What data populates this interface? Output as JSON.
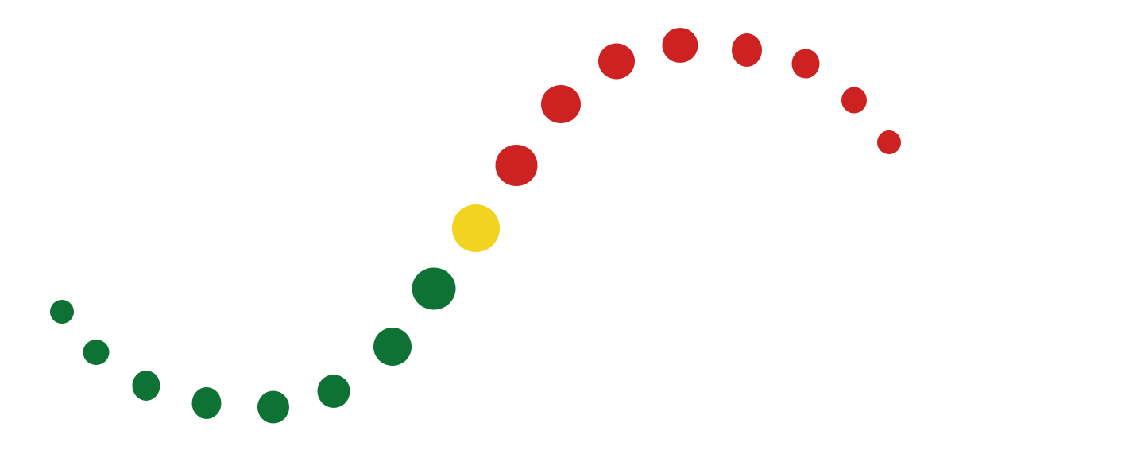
{
  "colors": {
    "background": "#ffffff",
    "green": "#0e7234",
    "yellow": "#f2d320",
    "red": "#cc2222"
  },
  "dots": [
    {
      "name": "dot-1",
      "color": "green"
    },
    {
      "name": "dot-2",
      "color": "green"
    },
    {
      "name": "dot-3",
      "color": "green"
    },
    {
      "name": "dot-4",
      "color": "green"
    },
    {
      "name": "dot-5",
      "color": "green"
    },
    {
      "name": "dot-6",
      "color": "green"
    },
    {
      "name": "dot-7",
      "color": "green"
    },
    {
      "name": "dot-8",
      "color": "green"
    },
    {
      "name": "dot-9",
      "color": "yellow"
    },
    {
      "name": "dot-10",
      "color": "red"
    },
    {
      "name": "dot-11",
      "color": "red"
    },
    {
      "name": "dot-12",
      "color": "red"
    },
    {
      "name": "dot-13",
      "color": "red"
    },
    {
      "name": "dot-14",
      "color": "red"
    },
    {
      "name": "dot-15",
      "color": "red"
    },
    {
      "name": "dot-16",
      "color": "red"
    },
    {
      "name": "dot-17",
      "color": "red"
    }
  ]
}
